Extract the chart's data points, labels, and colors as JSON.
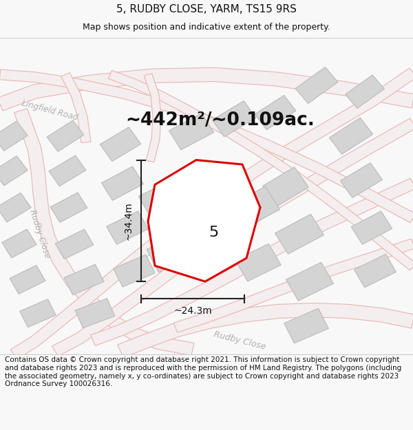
{
  "title": "5, RUDBY CLOSE, YARM, TS15 9RS",
  "subtitle": "Map shows position and indicative extent of the property.",
  "area_text": "~442m²/~0.109ac.",
  "label_5": "5",
  "dim_height": "~34.4m",
  "dim_width": "~24.3m",
  "footer": "Contains OS data © Crown copyright and database right 2021. This information is subject to Crown copyright and database rights 2023 and is reproduced with the permission of HM Land Registry. The polygons (including the associated geometry, namely x, y co-ordinates) are subject to Crown copyright and database rights 2023 Ordnance Survey 100026316.",
  "bg_color": "#f8f8f8",
  "map_bg": "#f0f0f0",
  "road_color": "#e8b4b4",
  "road_fill": "#f8f0f0",
  "building_color": "#d4d4d4",
  "building_edge": "#bbbbbb",
  "highlight_color": "#dd0000",
  "road_label_color": "#aaaaaa",
  "title_fontsize": 11,
  "subtitle_fontsize": 9,
  "area_fontsize": 19,
  "label_fontsize": 16,
  "dim_fontsize": 10,
  "footer_fontsize": 7.5
}
